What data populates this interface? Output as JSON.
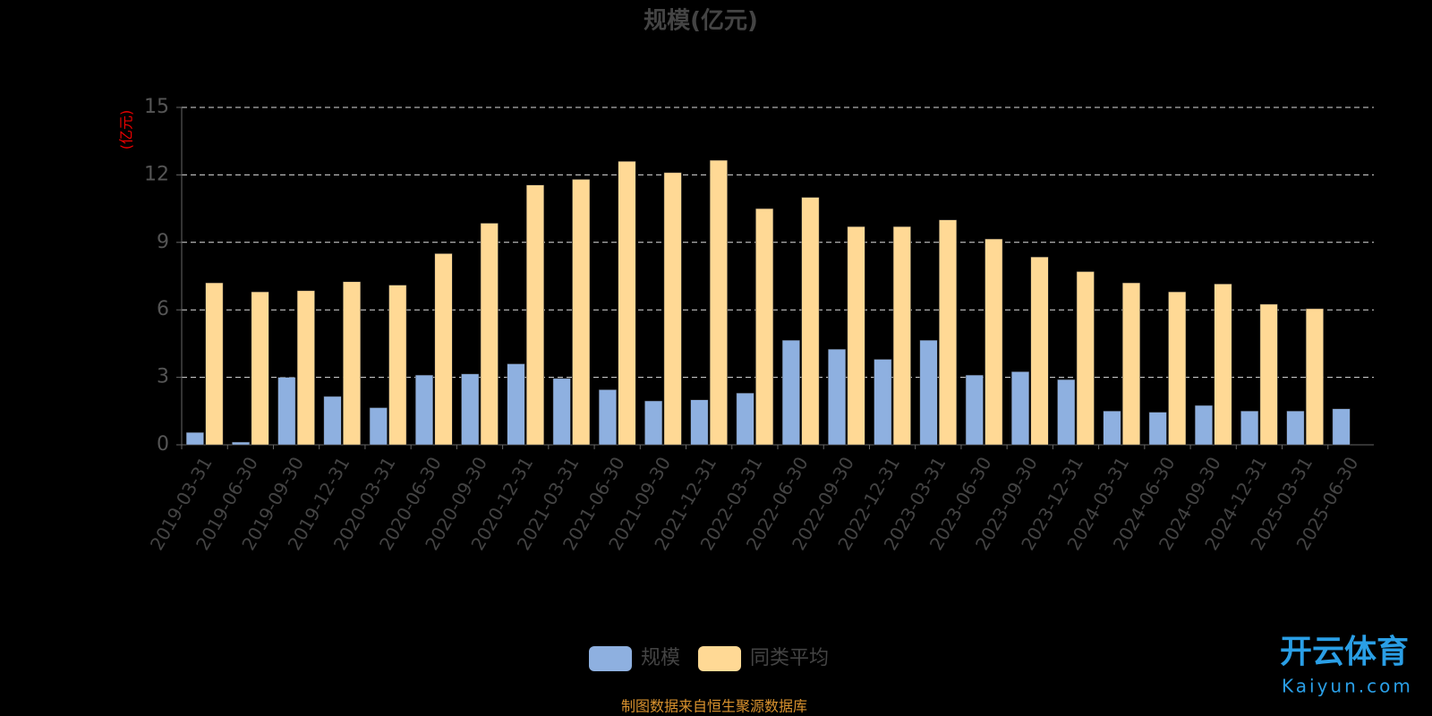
{
  "chart_data": {
    "type": "bar",
    "title": "规模(亿元)",
    "y_axis_label": "(亿元)",
    "categories": [
      "2019-03-31",
      "2019-06-30",
      "2019-09-30",
      "2019-12-31",
      "2020-03-31",
      "2020-06-30",
      "2020-09-30",
      "2020-12-31",
      "2021-03-31",
      "2021-06-30",
      "2021-09-30",
      "2021-12-31",
      "2022-03-31",
      "2022-06-30",
      "2022-09-30",
      "2022-12-31",
      "2023-03-31",
      "2023-06-30",
      "2023-09-30",
      "2023-12-31",
      "2024-03-31",
      "2024-06-30",
      "2024-09-30",
      "2024-12-31",
      "2025-03-31",
      "2025-06-30"
    ],
    "series": [
      {
        "name": "规模",
        "color": "#8eb0e0",
        "values": [
          0.55,
          0.12,
          3.0,
          2.15,
          1.65,
          3.1,
          3.15,
          3.6,
          2.95,
          2.45,
          1.95,
          2.0,
          2.3,
          4.65,
          4.25,
          3.8,
          4.65,
          3.1,
          3.25,
          2.9,
          1.5,
          1.45,
          1.75,
          1.5,
          1.5,
          1.6
        ]
      },
      {
        "name": "同类平均",
        "color": "#ffd995",
        "values": [
          7.2,
          6.8,
          6.85,
          7.25,
          7.1,
          8.5,
          9.85,
          11.55,
          11.8,
          12.6,
          12.1,
          12.65,
          10.5,
          11.0,
          9.7,
          9.7,
          10.0,
          9.15,
          8.35,
          7.7,
          7.2,
          6.8,
          7.15,
          6.25,
          6.05,
          null
        ]
      }
    ],
    "ylim": [
      0,
      15
    ],
    "yticks": [
      0,
      3,
      6,
      9,
      12,
      15
    ],
    "grid": true,
    "legend": "bottom",
    "source": "制图数据来自恒生聚源数据库",
    "watermark": {
      "brand": "开云体育",
      "site": "Kaiyun.com"
    }
  }
}
